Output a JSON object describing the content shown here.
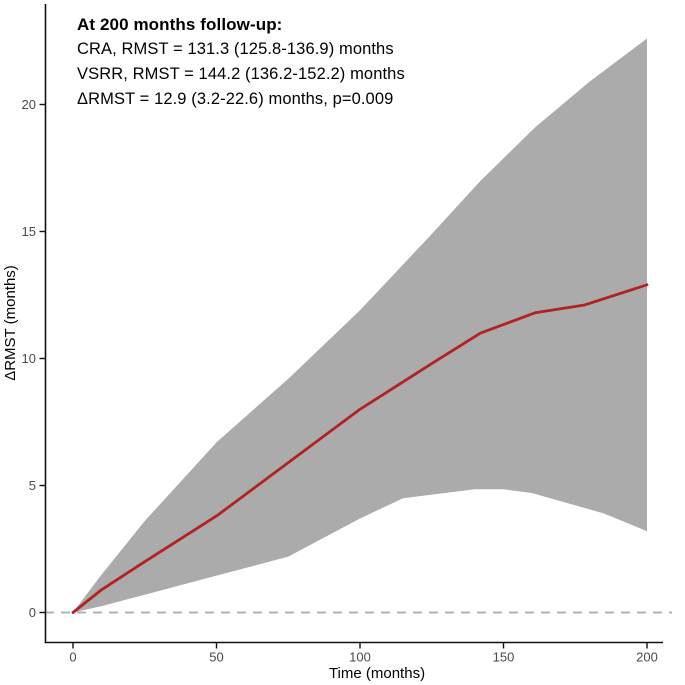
{
  "figure": {
    "annotation": {
      "title": "At 200 months follow-up:",
      "lines": [
        "CRA, RMST = 131.3 (125.8-136.9) months",
        "VSRR, RMST = 144.2 (136.2-152.2) months",
        "ΔRMST = 12.9 (3.2-22.6) months, p=0.009"
      ]
    }
  },
  "chart_data": {
    "type": "line",
    "title": "",
    "xlabel": "Time (months)",
    "ylabel": "ΔRMST (months)",
    "xlim": [
      0,
      200
    ],
    "ylim": [
      -1.2,
      24
    ],
    "x_ticks": [
      0,
      50,
      100,
      150,
      200
    ],
    "y_ticks": [
      0,
      5,
      10,
      15,
      20
    ],
    "grid": false,
    "legend_position": "none",
    "colors": {
      "line": "#B22222",
      "band": "#ABABAB",
      "reference": "#B3B3B3",
      "axis": "#111111",
      "tick_label": "#4a4a4a"
    },
    "reference_line": {
      "y": 0,
      "style": "dashed"
    },
    "series": [
      {
        "name": "ΔRMST estimate (VSRR vs CRA)",
        "role": "line",
        "x": [
          0,
          10,
          25,
          50,
          75,
          100,
          125,
          142,
          161,
          178,
          200
        ],
        "y": [
          0,
          0.9,
          2.0,
          3.8,
          5.9,
          8.0,
          9.8,
          11.0,
          11.8,
          12.1,
          12.9
        ]
      },
      {
        "name": "95% CI upper",
        "role": "band-upper",
        "x": [
          0,
          10,
          25,
          50,
          75,
          100,
          125,
          142,
          161,
          180,
          200
        ],
        "y": [
          0,
          1.5,
          3.6,
          6.7,
          9.2,
          11.9,
          14.9,
          17.0,
          19.1,
          20.9,
          22.6
        ]
      },
      {
        "name": "95% CI lower",
        "role": "band-lower",
        "x": [
          0,
          10,
          25,
          50,
          75,
          100,
          115,
          140,
          150,
          160,
          185,
          200
        ],
        "y": [
          0,
          0.25,
          0.7,
          1.45,
          2.2,
          3.7,
          4.5,
          4.85,
          4.85,
          4.7,
          3.9,
          3.2
        ]
      }
    ],
    "key_values": {
      "followup_months": 200,
      "cra_rmst": 131.3,
      "cra_ci": [
        125.8,
        136.9
      ],
      "vsrr_rmst": 144.2,
      "vsrr_ci": [
        136.2,
        152.2
      ],
      "delta_rmst": 12.9,
      "delta_ci": [
        3.2,
        22.6
      ],
      "p_value": 0.009
    }
  }
}
